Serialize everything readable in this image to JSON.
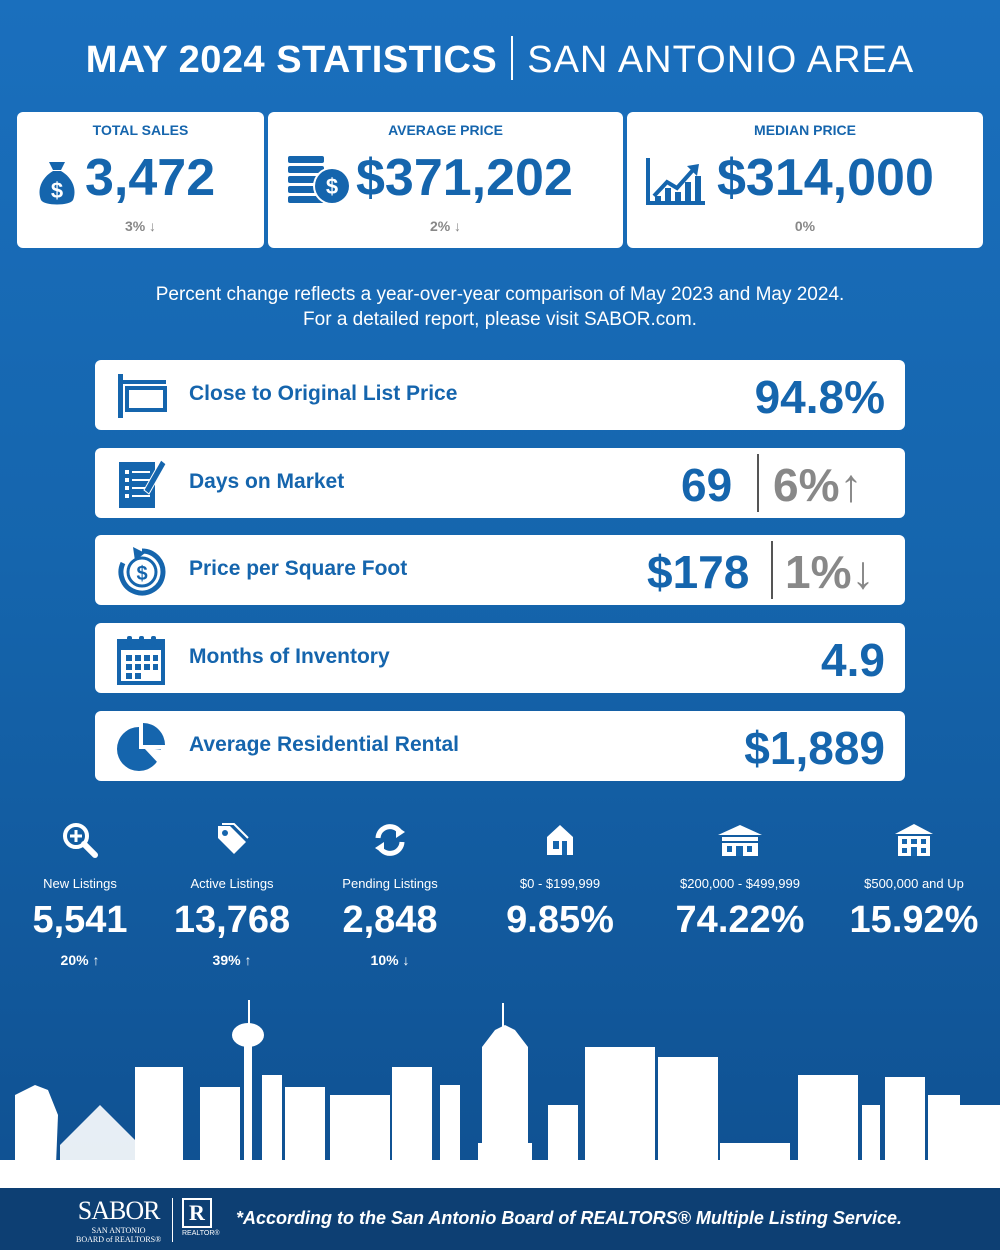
{
  "header": {
    "title_bold": "MAY 2024 STATISTICS",
    "title_light": "SAN ANTONIO AREA"
  },
  "cards": {
    "total_sales": {
      "title": "TOTAL SALES",
      "value": "3,472",
      "change": "3%",
      "icon": "money-bag-icon"
    },
    "average_price": {
      "title": "AVERAGE PRICE",
      "value": "$371,202",
      "change": "2%",
      "icon": "coin-stack-icon"
    },
    "median_price": {
      "title": "MEDIAN PRICE",
      "value": "$314,000",
      "change": "0%",
      "icon": "rising-chart-icon"
    }
  },
  "note": {
    "line1": "Percent change reflects a year-over-year comparison of May 2023 and May 2024.",
    "line2": "For a detailed report, please visit SABOR.com."
  },
  "rows": {
    "close_to_list": {
      "label": "Close to Original List Price",
      "value": "94.8%"
    },
    "days_on_market": {
      "label": "Days on Market",
      "value": "69",
      "change": "6%",
      "direction": "up"
    },
    "price_per_sqft": {
      "label": "Price per Square Foot",
      "value": "$178",
      "change": "1%",
      "direction": "down"
    },
    "months_inventory": {
      "label": "Months of Inventory",
      "value": "4.9"
    },
    "avg_rental": {
      "label": "Average Residential Rental",
      "value": "$1,889"
    }
  },
  "stats": {
    "new_listings": {
      "label": "New Listings",
      "value": "5,541",
      "change": "20%",
      "direction": "up"
    },
    "active_listings": {
      "label": "Active Listings",
      "value": "13,768",
      "change": "39%",
      "direction": "up"
    },
    "pending_listings": {
      "label": "Pending Listings",
      "value": "2,848",
      "change": "10%",
      "direction": "down"
    },
    "range_low": {
      "label": "$0 - $199,999",
      "value": "9.85%"
    },
    "range_mid": {
      "label": "$200,000 - $499,999",
      "value": "74.22%"
    },
    "range_high": {
      "label": "$500,000 and Up",
      "value": "15.92%"
    }
  },
  "footer": {
    "logo_main": "SABOR",
    "logo_line1": "SAN ANTONIO",
    "logo_line2": "BOARD of REALTORS®",
    "realtor_mark": "R",
    "realtor_text": "REALTOR®",
    "note": "*According to the San Antonio Board of REALTORS® Multiple Listing Service."
  },
  "colors": {
    "brand_blue": "#1565ad",
    "footer_navy": "#0d3f73",
    "muted_gray": "#888888"
  }
}
